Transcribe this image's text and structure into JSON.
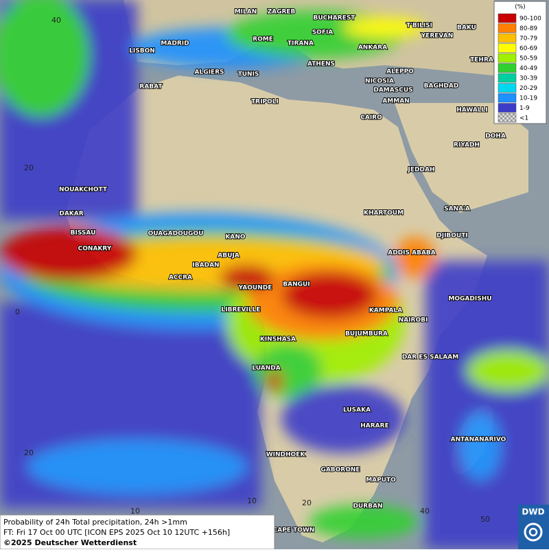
{
  "map": {
    "cities": [
      "MILAN",
      "ZAGREB",
      "BUCHAREST",
      "T'BILISI",
      "BAKU",
      "MADRID",
      "ROME",
      "SOFIA",
      "TIRANA",
      "ANKARA",
      "YEREVAN",
      "TEHRA",
      "LISBON",
      "ALGIERS",
      "TUNIS",
      "ATHENS",
      "ALEPPO",
      "NICOSIA",
      "RABAT",
      "BAGHDAD",
      "DAMASCUS",
      "AMMAN",
      "TRIPOLI",
      "HAWALLI",
      "CAIRO",
      "DOHA",
      "RIYADH",
      "JEDDAH",
      "NOUAKCHOTT",
      "SANA'A",
      "DAKAR",
      "KHARTOUM",
      "BISSAU",
      "OUAGADOUGOU",
      "DJIBOUTI",
      "KANO",
      "CONAKRY",
      "ABUJA",
      "ADDIS ABABA",
      "IBADAN",
      "ACCRA",
      "BANGUI",
      "YAOUNDE",
      "MOGADISHU",
      "LIBREVILLE",
      "KAMPALA",
      "NAIROBI",
      "BUJUMBURA",
      "KINSHASA",
      "DAR ES SALAAM",
      "LUANDA",
      "LUSAKA",
      "HARARE",
      "ANTANANARIVO",
      "WINDHOEK",
      "GABORONE",
      "MAPUTO",
      "DURBAN",
      "CAPE TOWN"
    ],
    "lat_labels": [
      "40",
      "20",
      "0",
      "20"
    ],
    "lon_labels": [
      "10",
      "10",
      "20",
      "40",
      "50"
    ]
  },
  "legend": {
    "unit": "(%)",
    "entries": [
      {
        "label": "90-100",
        "color": "#c80000"
      },
      {
        "label": "80-89",
        "color": "#ff8000"
      },
      {
        "label": "70-79",
        "color": "#ffc000"
      },
      {
        "label": "60-69",
        "color": "#ffff00"
      },
      {
        "label": "50-59",
        "color": "#a0f000"
      },
      {
        "label": "40-49",
        "color": "#30d030"
      },
      {
        "label": "30-39",
        "color": "#00d0a0"
      },
      {
        "label": "20-29",
        "color": "#00d8f0"
      },
      {
        "label": "10-19",
        "color": "#1e90ff"
      },
      {
        "label": "1-9",
        "color": "#3c3cc8"
      },
      {
        "label": "<1",
        "color": "#b0b0b0"
      }
    ]
  },
  "footer": [
    "Probability of 24h Total precipitation, 24h >1mm",
    "FT: Fri 17 Oct 00 UTC [ICON EPS 2025 Oct 10 12UTC +156h]",
    "©2025 Deutscher Wetterdienst"
  ],
  "logo": "DWD"
}
